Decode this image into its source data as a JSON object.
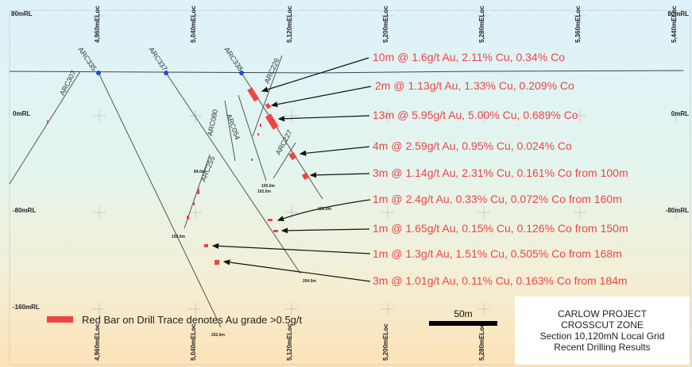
{
  "rl_labels": [
    {
      "text": "80mRL",
      "side": "left"
    },
    {
      "text": "80mRL",
      "side": "right"
    },
    {
      "text": "0mRL",
      "side": "left"
    },
    {
      "text": "0mRL",
      "side": "right"
    },
    {
      "text": "-80mRL",
      "side": "left"
    },
    {
      "text": "-80mRL",
      "side": "right"
    },
    {
      "text": "-160mRL",
      "side": "left"
    }
  ],
  "easting_top": [
    "4,960mELoc",
    "5,040mELoc",
    "5,120mELoc",
    "5,200mELoc",
    "5,280mELoc",
    "5,360mELoc",
    "5,440mELoc"
  ],
  "easting_bottom": [
    "4,960mELoc",
    "5,040mELoc",
    "5,120mELoc",
    "5,200mELoc",
    "5,280mELoc"
  ],
  "holes": [
    "ARC307",
    "ARC335",
    "ARC337",
    "ARC338",
    "ARC226",
    "ARC054",
    "ARC080",
    "ARC227",
    "ARC255"
  ],
  "depth_labels": [
    "84.0m",
    "150.0m",
    "204.0m",
    "252.0m",
    "100.0m",
    "102.0m",
    "126.0m"
  ],
  "intercepts": [
    "10m @ 1.6g/t Au, 2.11% Cu, 0.34% Co",
    "2m @ 1.13g/t Au, 1.33% Cu, 0.209% Co",
    "13m @ 5.95g/t Au, 5.00% Cu, 0.689% Co",
    "4m @ 2.59g/t Au, 0.95% Cu, 0.024% Co",
    "3m @ 1.14g/t Au, 2.31% Cu, 0.161% Co from 100m",
    "1m @ 2.4g/t Au, 0.33% Cu, 0.072% Co from 160m",
    "1m @ 1.65g/t Au, 0.15% Cu, 0.126% Co from 150m",
    "1m @ 1.3g/t Au, 1.51% Cu, 0.505% Co from 168m",
    "3m @ 1.01g/t Au, 0.11% Cu, 0.163% Co from 184m"
  ],
  "legend": "Red Bar on Drill Trace denotes Au grade >0.5g/t",
  "scale_bar": "50m",
  "title_box": [
    "CARLOW PROJECT",
    "CROSSCUT ZONE",
    "Section 10,120mN Local Grid",
    "Recent Drilling Results"
  ],
  "colors": {
    "intercept": "#ef4444",
    "collar": "#1d4ed8",
    "trace": "#555555",
    "sky_top": "#dbf1fb",
    "bottom": "#fde4b8"
  }
}
